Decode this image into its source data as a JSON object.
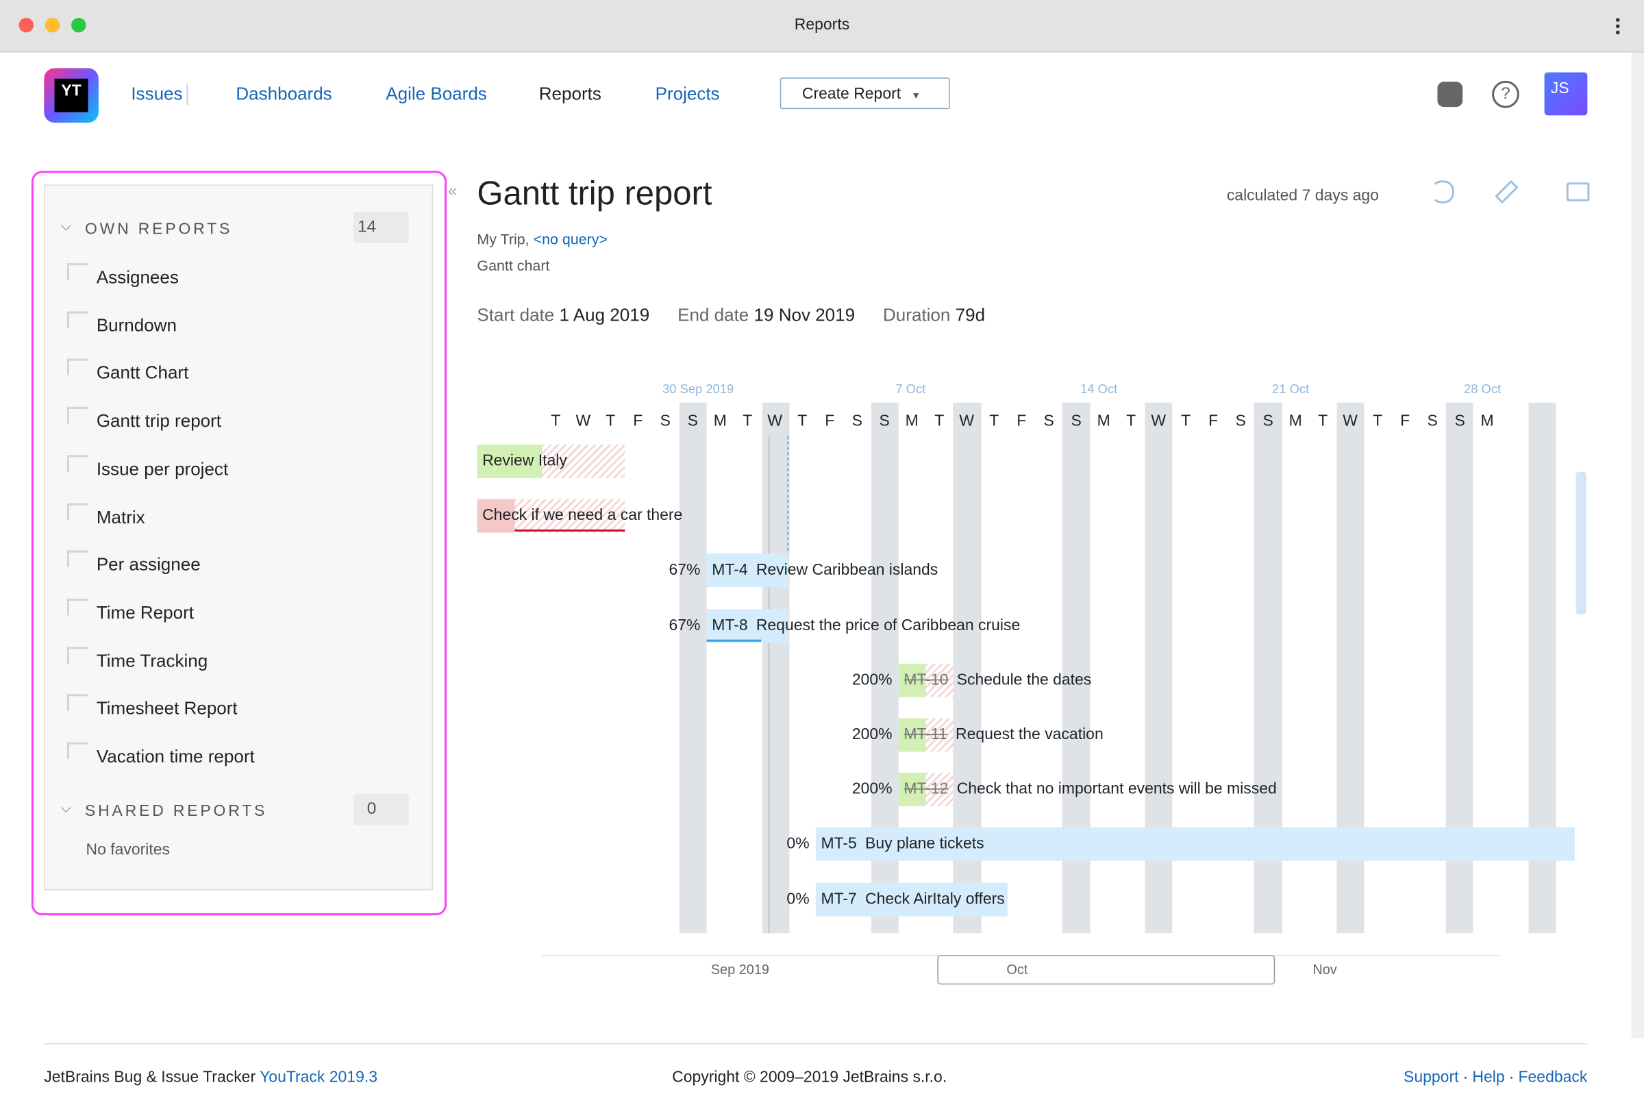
{
  "window": {
    "title": "Reports"
  },
  "nav": {
    "logo": "YT",
    "items": [
      "Issues",
      "Dashboards",
      "Agile Boards",
      "Reports",
      "Projects"
    ],
    "create": "Create Report",
    "avatar": "JS"
  },
  "sidebar": {
    "own": {
      "title": "OWN REPORTS",
      "count": "14",
      "items": [
        "Assignees",
        "Burndown",
        "Gantt Chart",
        "Gantt trip report",
        "Issue per project",
        "Matrix",
        "Per assignee",
        "Time Report",
        "Time Tracking",
        "Timesheet Report",
        "Vacation time report"
      ]
    },
    "shared": {
      "title": "SHARED REPORTS",
      "count": "0",
      "empty": "No favorites"
    }
  },
  "report": {
    "title": "Gantt trip report",
    "calculated": "calculated 7 days ago",
    "project": "My Trip,",
    "query": "<no query>",
    "type": "Gantt chart",
    "start_label": "Start date",
    "start": "1 Aug 2019",
    "end_label": "End date",
    "end": "19 Nov 2019",
    "duration_label": "Duration",
    "duration": "79d"
  },
  "gantt": {
    "week_labels": [
      "30 Sep 2019",
      "7 Oct",
      "14 Oct",
      "21 Oct",
      "28 Oct"
    ],
    "days": [
      "T",
      "W",
      "T",
      "F",
      "S",
      "S",
      "M",
      "T",
      "W",
      "T",
      "F",
      "S",
      "S",
      "M",
      "T",
      "W",
      "T",
      "F",
      "S",
      "S",
      "M",
      "T",
      "W",
      "T",
      "F",
      "S",
      "S",
      "M",
      "T",
      "W",
      "T",
      "F",
      "S",
      "S",
      "M"
    ],
    "tasks": [
      {
        "summary": "Review Italy"
      },
      {
        "summary": "Check if we need a car there"
      },
      {
        "percent": "67%",
        "id": "MT-4",
        "summary": "Review Caribbean islands"
      },
      {
        "percent": "67%",
        "id": "MT-8",
        "summary": "Request the price of Caribbean cruise"
      },
      {
        "percent": "200%",
        "id": "MT-10",
        "summary": "Schedule the dates"
      },
      {
        "percent": "200%",
        "id": "MT-11",
        "summary": "Request the vacation"
      },
      {
        "percent": "200%",
        "id": "MT-12",
        "summary": "Check that no important events will be missed"
      },
      {
        "percent": "0%",
        "id": "MT-5",
        "summary": "Buy plane tickets"
      },
      {
        "percent": "0%",
        "id": "MT-7",
        "summary": "Check AirItaly offers"
      }
    ],
    "timeline": [
      "Sep 2019",
      "Oct",
      "Nov"
    ]
  },
  "footer": {
    "tracker": "JetBrains Bug & Issue Tracker",
    "version": "YouTrack 2019.3",
    "copyright": "Copyright © 2009–2019 JetBrains s.r.o.",
    "links": [
      "Support",
      "Help",
      "Feedback"
    ],
    "separator": "·"
  }
}
